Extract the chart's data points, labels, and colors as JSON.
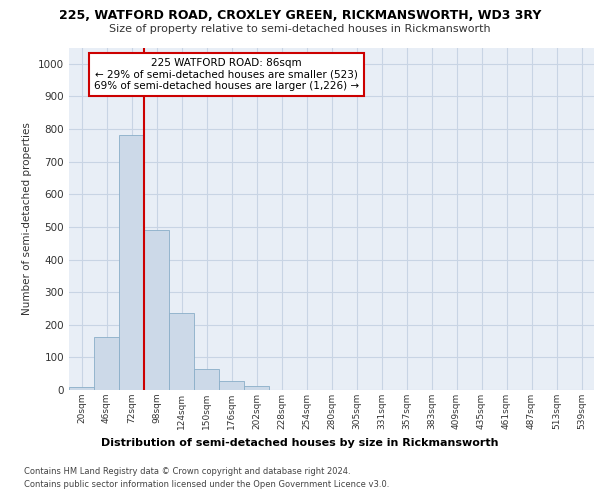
{
  "title_line1": "225, WATFORD ROAD, CROXLEY GREEN, RICKMANSWORTH, WD3 3RY",
  "title_line2": "Size of property relative to semi-detached houses in Rickmansworth",
  "xlabel": "Distribution of semi-detached houses by size in Rickmansworth",
  "ylabel": "Number of semi-detached properties",
  "footer_line1": "Contains HM Land Registry data © Crown copyright and database right 2024.",
  "footer_line2": "Contains public sector information licensed under the Open Government Licence v3.0.",
  "bar_labels": [
    "20sqm",
    "46sqm",
    "72sqm",
    "98sqm",
    "124sqm",
    "150sqm",
    "176sqm",
    "202sqm",
    "228sqm",
    "254sqm",
    "280sqm",
    "305sqm",
    "331sqm",
    "357sqm",
    "383sqm",
    "409sqm",
    "435sqm",
    "461sqm",
    "487sqm",
    "513sqm",
    "539sqm"
  ],
  "bar_values": [
    10,
    163,
    783,
    490,
    235,
    63,
    28,
    13,
    0,
    0,
    0,
    0,
    0,
    0,
    0,
    0,
    0,
    0,
    0,
    0,
    0
  ],
  "bar_color": "#ccd9e8",
  "bar_edge_color": "#8aaec8",
  "grid_color": "#c8d4e4",
  "background_color": "#e8eef6",
  "vline_color": "#cc0000",
  "annotation_text": "225 WATFORD ROAD: 86sqm\n← 29% of semi-detached houses are smaller (523)\n69% of semi-detached houses are larger (1,226) →",
  "annotation_box_color": "#ffffff",
  "annotation_box_edge": "#cc0000",
  "ylim": [
    0,
    1050
  ],
  "yticks": [
    0,
    100,
    200,
    300,
    400,
    500,
    600,
    700,
    800,
    900,
    1000
  ]
}
